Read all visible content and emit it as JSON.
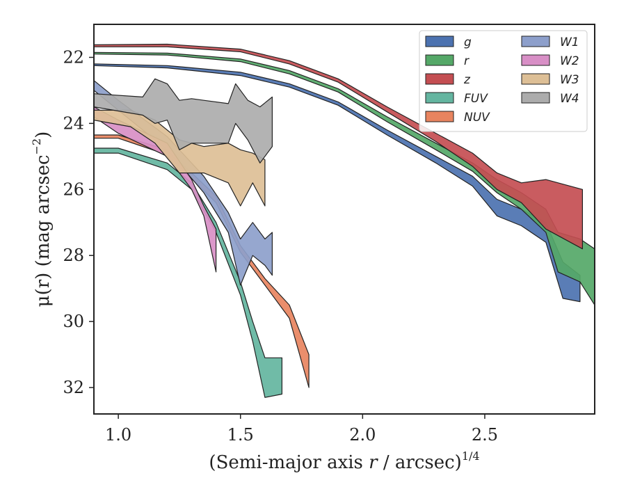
{
  "chart_data": {
    "type": "area",
    "xlabel": "(Semi-major axis r / arcsec)",
    "xlabel_italic_part": "r",
    "xlabel_exponent": "1/4",
    "ylabel": "μ(r) (mag arcsec",
    "ylabel_exponent": "−2",
    "ylabel_suffix": ")",
    "xlim": [
      0.9,
      2.95
    ],
    "ylim": [
      32.8,
      21.0
    ],
    "y_inverted": true,
    "x_ticks": [
      1.0,
      1.5,
      2.0,
      2.5
    ],
    "x_tick_labels": [
      "1.0",
      "1.5",
      "2.0",
      "2.5"
    ],
    "y_ticks": [
      22,
      24,
      26,
      28,
      30,
      32
    ],
    "y_tick_labels": [
      "22",
      "24",
      "26",
      "28",
      "30",
      "32"
    ],
    "grid": false,
    "legend_position": "top-right",
    "legend_columns": 2,
    "series": [
      {
        "name": "g",
        "color": "#4c72b0",
        "upper": [
          [
            0.9,
            22.2
          ],
          [
            1.2,
            22.25
          ],
          [
            1.5,
            22.45
          ],
          [
            1.7,
            22.8
          ],
          [
            1.9,
            23.35
          ],
          [
            2.1,
            24.2
          ],
          [
            2.3,
            25.0
          ],
          [
            2.45,
            25.6
          ],
          [
            2.55,
            26.3
          ],
          [
            2.65,
            26.6
          ],
          [
            2.75,
            27.0
          ],
          [
            2.82,
            28.2
          ],
          [
            2.89,
            28.6
          ]
        ],
        "lower": [
          [
            0.9,
            22.25
          ],
          [
            1.2,
            22.32
          ],
          [
            1.5,
            22.55
          ],
          [
            1.7,
            22.9
          ],
          [
            1.9,
            23.45
          ],
          [
            2.1,
            24.35
          ],
          [
            2.3,
            25.2
          ],
          [
            2.45,
            25.9
          ],
          [
            2.55,
            26.8
          ],
          [
            2.65,
            27.1
          ],
          [
            2.75,
            27.6
          ],
          [
            2.82,
            29.3
          ],
          [
            2.89,
            29.4
          ]
        ]
      },
      {
        "name": "r",
        "color": "#55a868",
        "upper": [
          [
            0.9,
            21.85
          ],
          [
            1.2,
            21.87
          ],
          [
            1.5,
            22.05
          ],
          [
            1.7,
            22.4
          ],
          [
            1.9,
            22.95
          ],
          [
            2.1,
            23.8
          ],
          [
            2.3,
            24.6
          ],
          [
            2.45,
            25.2
          ],
          [
            2.55,
            25.7
          ],
          [
            2.65,
            26.1
          ],
          [
            2.75,
            26.6
          ],
          [
            2.8,
            27.3
          ],
          [
            2.89,
            27.5
          ],
          [
            2.95,
            27.8
          ]
        ],
        "lower": [
          [
            0.9,
            21.9
          ],
          [
            1.2,
            21.93
          ],
          [
            1.5,
            22.13
          ],
          [
            1.7,
            22.5
          ],
          [
            1.9,
            23.05
          ],
          [
            2.1,
            23.95
          ],
          [
            2.3,
            24.8
          ],
          [
            2.45,
            25.45
          ],
          [
            2.55,
            26.1
          ],
          [
            2.65,
            26.6
          ],
          [
            2.75,
            27.3
          ],
          [
            2.8,
            28.5
          ],
          [
            2.89,
            28.8
          ],
          [
            2.95,
            29.5
          ]
        ]
      },
      {
        "name": "z",
        "color": "#c44e52",
        "upper": [
          [
            0.9,
            21.62
          ],
          [
            1.2,
            21.6
          ],
          [
            1.5,
            21.75
          ],
          [
            1.7,
            22.1
          ],
          [
            1.9,
            22.65
          ],
          [
            2.1,
            23.5
          ],
          [
            2.3,
            24.3
          ],
          [
            2.45,
            24.9
          ],
          [
            2.55,
            25.5
          ],
          [
            2.65,
            25.8
          ],
          [
            2.75,
            25.7
          ],
          [
            2.9,
            26.0
          ]
        ],
        "lower": [
          [
            0.9,
            21.68
          ],
          [
            1.2,
            21.68
          ],
          [
            1.5,
            21.83
          ],
          [
            1.7,
            22.2
          ],
          [
            1.9,
            22.75
          ],
          [
            2.1,
            23.65
          ],
          [
            2.3,
            24.55
          ],
          [
            2.45,
            25.3
          ],
          [
            2.55,
            26.0
          ],
          [
            2.65,
            26.4
          ],
          [
            2.75,
            27.2
          ],
          [
            2.9,
            27.8
          ]
        ]
      },
      {
        "name": "FUV",
        "color": "#64b5a0",
        "upper": [
          [
            0.9,
            24.75
          ],
          [
            1.0,
            24.75
          ],
          [
            1.2,
            25.2
          ],
          [
            1.3,
            25.8
          ],
          [
            1.4,
            27.0
          ],
          [
            1.5,
            28.8
          ],
          [
            1.55,
            30.0
          ],
          [
            1.6,
            31.1
          ],
          [
            1.67,
            31.1
          ]
        ],
        "lower": [
          [
            0.9,
            24.9
          ],
          [
            1.0,
            24.9
          ],
          [
            1.2,
            25.4
          ],
          [
            1.3,
            26.0
          ],
          [
            1.4,
            27.3
          ],
          [
            1.5,
            29.2
          ],
          [
            1.55,
            30.6
          ],
          [
            1.6,
            32.3
          ],
          [
            1.67,
            32.2
          ]
        ]
      },
      {
        "name": "NUV",
        "color": "#e8845f",
        "upper": [
          [
            0.9,
            24.35
          ],
          [
            1.0,
            24.35
          ],
          [
            1.2,
            24.8
          ],
          [
            1.4,
            26.2
          ],
          [
            1.5,
            27.7
          ],
          [
            1.6,
            28.7
          ],
          [
            1.7,
            29.5
          ],
          [
            1.78,
            31.0
          ]
        ],
        "lower": [
          [
            0.9,
            24.45
          ],
          [
            1.0,
            24.45
          ],
          [
            1.2,
            24.95
          ],
          [
            1.4,
            26.4
          ],
          [
            1.5,
            27.9
          ],
          [
            1.6,
            28.9
          ],
          [
            1.7,
            29.9
          ],
          [
            1.78,
            32.0
          ]
        ]
      },
      {
        "name": "W1",
        "color": "#8d9fcb",
        "upper": [
          [
            0.9,
            22.7
          ],
          [
            1.0,
            23.3
          ],
          [
            1.2,
            24.4
          ],
          [
            1.35,
            25.6
          ],
          [
            1.45,
            26.7
          ],
          [
            1.5,
            27.5
          ],
          [
            1.55,
            27.0
          ],
          [
            1.6,
            27.5
          ],
          [
            1.63,
            27.3
          ]
        ],
        "lower": [
          [
            0.9,
            23.0
          ],
          [
            1.0,
            23.6
          ],
          [
            1.2,
            24.8
          ],
          [
            1.35,
            26.1
          ],
          [
            1.45,
            27.3
          ],
          [
            1.5,
            28.9
          ],
          [
            1.55,
            28.0
          ],
          [
            1.6,
            28.3
          ],
          [
            1.63,
            28.6
          ]
        ]
      },
      {
        "name": "W2",
        "color": "#d88fc6",
        "upper": [
          [
            0.9,
            23.5
          ],
          [
            1.0,
            23.9
          ],
          [
            1.2,
            24.6
          ],
          [
            1.3,
            25.7
          ],
          [
            1.35,
            26.5
          ],
          [
            1.4,
            27.2
          ]
        ],
        "lower": [
          [
            0.9,
            23.8
          ],
          [
            1.0,
            24.3
          ],
          [
            1.2,
            25.0
          ],
          [
            1.3,
            26.0
          ],
          [
            1.35,
            26.8
          ],
          [
            1.4,
            28.5
          ]
        ]
      },
      {
        "name": "W3",
        "color": "#ddbf96",
        "upper": [
          [
            0.9,
            23.6
          ],
          [
            1.05,
            23.6
          ],
          [
            1.15,
            23.9
          ],
          [
            1.25,
            24.5
          ],
          [
            1.35,
            24.7
          ],
          [
            1.45,
            24.6
          ],
          [
            1.5,
            24.8
          ],
          [
            1.55,
            24.9
          ],
          [
            1.6,
            25.1
          ]
        ],
        "lower": [
          [
            0.9,
            23.9
          ],
          [
            1.05,
            24.1
          ],
          [
            1.15,
            24.6
          ],
          [
            1.25,
            25.5
          ],
          [
            1.35,
            25.5
          ],
          [
            1.45,
            25.8
          ],
          [
            1.5,
            26.5
          ],
          [
            1.55,
            25.8
          ],
          [
            1.6,
            26.5
          ]
        ]
      },
      {
        "name": "W4",
        "color": "#acacac",
        "upper": [
          [
            0.9,
            23.1
          ],
          [
            1.1,
            23.2
          ],
          [
            1.15,
            22.65
          ],
          [
            1.2,
            22.8
          ],
          [
            1.25,
            23.3
          ],
          [
            1.3,
            23.25
          ],
          [
            1.35,
            23.3
          ],
          [
            1.45,
            23.4
          ],
          [
            1.48,
            22.8
          ],
          [
            1.53,
            23.3
          ],
          [
            1.58,
            23.5
          ],
          [
            1.63,
            23.2
          ]
        ],
        "lower": [
          [
            0.9,
            23.5
          ],
          [
            1.1,
            23.75
          ],
          [
            1.15,
            24.0
          ],
          [
            1.2,
            23.9
          ],
          [
            1.25,
            24.8
          ],
          [
            1.3,
            24.6
          ],
          [
            1.35,
            24.6
          ],
          [
            1.45,
            24.6
          ],
          [
            1.48,
            24.0
          ],
          [
            1.53,
            24.5
          ],
          [
            1.58,
            25.2
          ],
          [
            1.63,
            24.7
          ]
        ]
      }
    ]
  }
}
